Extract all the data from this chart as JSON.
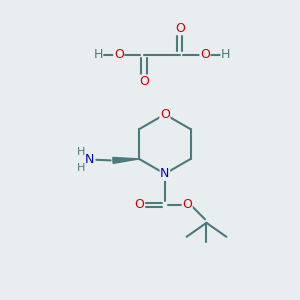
{
  "background_color": "#e8eef0",
  "atom_colors": {
    "C": "#4a7a7a",
    "O": "#cc0000",
    "N": "#0000cc",
    "H": "#4a7a7a"
  },
  "bond_color": "#4a7a7a",
  "bond_width": 1.5,
  "font_size_atom": 9,
  "fig_width": 3.0,
  "fig_height": 3.0,
  "dpi": 100
}
